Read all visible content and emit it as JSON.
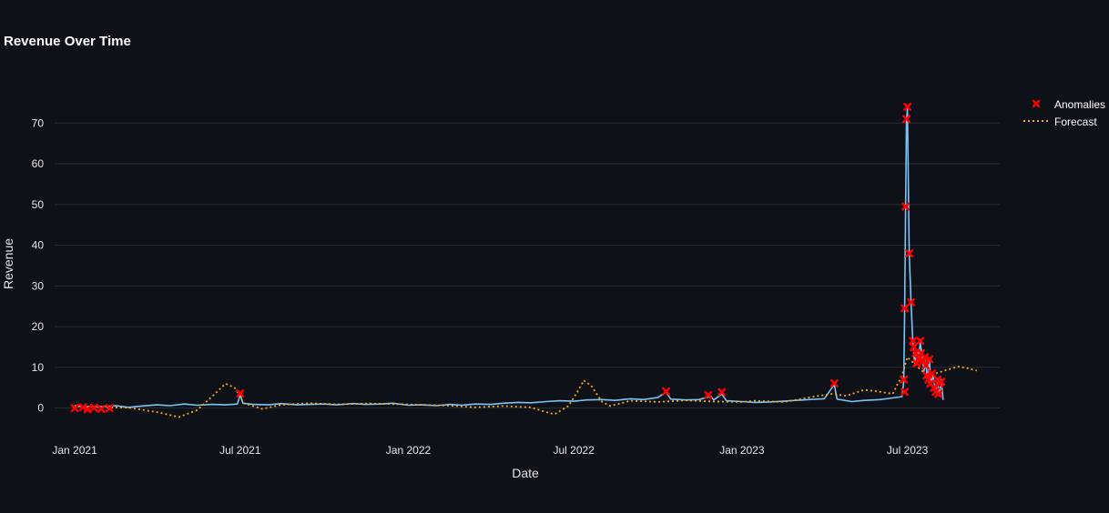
{
  "chart_data": {
    "type": "line",
    "title": "Revenue Over Time",
    "xlabel": "Date",
    "ylabel": "Revenue",
    "x_axis": {
      "type": "date",
      "range": [
        "2020-12-10",
        "2023-10-10"
      ],
      "ticks": [
        {
          "date": "2021-01-01",
          "label": "Jan 2021"
        },
        {
          "date": "2021-07-01",
          "label": "Jul 2021"
        },
        {
          "date": "2022-01-01",
          "label": "Jan 2022"
        },
        {
          "date": "2022-07-01",
          "label": "Jul 2022"
        },
        {
          "date": "2023-01-01",
          "label": "Jan 2023"
        },
        {
          "date": "2023-07-01",
          "label": "Jul 2023"
        }
      ]
    },
    "y_axis": {
      "range": [
        -7,
        79
      ],
      "ticks": [
        0,
        10,
        20,
        30,
        40,
        50,
        60,
        70
      ]
    },
    "grid": true,
    "legend_position": "top-right",
    "series": [
      {
        "kind": "line",
        "color": "#7cc4f8",
        "points": [
          [
            "2021-01-01",
            0.5
          ],
          [
            "2021-01-15",
            0.3
          ],
          [
            "2021-02-01",
            0.4
          ],
          [
            "2021-02-15",
            0.6
          ],
          [
            "2021-03-01",
            0.2
          ],
          [
            "2021-03-15",
            0.5
          ],
          [
            "2021-04-01",
            0.8
          ],
          [
            "2021-04-15",
            0.6
          ],
          [
            "2021-05-01",
            1.0
          ],
          [
            "2021-05-15",
            0.7
          ],
          [
            "2021-06-01",
            0.9
          ],
          [
            "2021-06-15",
            0.8
          ],
          [
            "2021-06-28",
            1.0
          ],
          [
            "2021-07-01",
            3.3
          ],
          [
            "2021-07-04",
            1.2
          ],
          [
            "2021-07-15",
            0.9
          ],
          [
            "2021-08-01",
            0.8
          ],
          [
            "2021-08-15",
            1.1
          ],
          [
            "2021-09-01",
            0.8
          ],
          [
            "2021-09-15",
            0.9
          ],
          [
            "2021-10-01",
            1.0
          ],
          [
            "2021-10-15",
            0.8
          ],
          [
            "2021-11-01",
            1.1
          ],
          [
            "2021-11-15",
            0.9
          ],
          [
            "2021-12-01",
            1.0
          ],
          [
            "2021-12-15",
            1.2
          ],
          [
            "2022-01-01",
            0.7
          ],
          [
            "2022-01-15",
            0.8
          ],
          [
            "2022-02-01",
            0.6
          ],
          [
            "2022-02-15",
            0.9
          ],
          [
            "2022-03-01",
            0.7
          ],
          [
            "2022-03-15",
            1.0
          ],
          [
            "2022-04-01",
            0.9
          ],
          [
            "2022-04-15",
            1.2
          ],
          [
            "2022-05-01",
            1.4
          ],
          [
            "2022-05-15",
            1.3
          ],
          [
            "2022-06-01",
            1.6
          ],
          [
            "2022-06-15",
            1.8
          ],
          [
            "2022-07-01",
            1.7
          ],
          [
            "2022-07-15",
            2.0
          ],
          [
            "2022-08-01",
            2.1
          ],
          [
            "2022-08-15",
            1.9
          ],
          [
            "2022-09-01",
            2.3
          ],
          [
            "2022-09-15",
            2.1
          ],
          [
            "2022-10-01",
            2.6
          ],
          [
            "2022-10-10",
            4.0
          ],
          [
            "2022-10-15",
            2.2
          ],
          [
            "2022-11-01",
            2.0
          ],
          [
            "2022-11-15",
            2.1
          ],
          [
            "2022-11-28",
            2.9
          ],
          [
            "2022-12-01",
            2.0
          ],
          [
            "2022-12-10",
            3.4
          ],
          [
            "2022-12-15",
            1.8
          ],
          [
            "2023-01-01",
            1.6
          ],
          [
            "2023-01-15",
            1.4
          ],
          [
            "2023-02-01",
            1.5
          ],
          [
            "2023-02-15",
            1.7
          ],
          [
            "2023-03-01",
            1.9
          ],
          [
            "2023-03-15",
            2.1
          ],
          [
            "2023-04-01",
            2.3
          ],
          [
            "2023-04-12",
            5.8
          ],
          [
            "2023-04-15",
            2.2
          ],
          [
            "2023-05-01",
            1.6
          ],
          [
            "2023-05-15",
            1.9
          ],
          [
            "2023-06-01",
            2.1
          ],
          [
            "2023-06-15",
            2.5
          ],
          [
            "2023-06-25",
            2.8
          ],
          [
            "2023-06-27",
            6.5
          ],
          [
            "2023-06-28",
            24.5
          ],
          [
            "2023-06-29",
            49.0
          ],
          [
            "2023-06-30",
            70.5
          ],
          [
            "2023-07-01",
            73.5
          ],
          [
            "2023-07-03",
            38.0
          ],
          [
            "2023-07-05",
            26.0
          ],
          [
            "2023-07-07",
            16.0
          ],
          [
            "2023-07-09",
            11.0
          ],
          [
            "2023-07-11",
            14.0
          ],
          [
            "2023-07-13",
            12.5
          ],
          [
            "2023-07-15",
            16.0
          ],
          [
            "2023-07-17",
            13.0
          ],
          [
            "2023-07-19",
            9.0
          ],
          [
            "2023-07-21",
            11.5
          ],
          [
            "2023-07-23",
            7.0
          ],
          [
            "2023-07-25",
            12.0
          ],
          [
            "2023-07-27",
            5.5
          ],
          [
            "2023-07-29",
            8.0
          ],
          [
            "2023-08-01",
            4.0
          ],
          [
            "2023-08-03",
            6.5
          ],
          [
            "2023-08-05",
            3.0
          ],
          [
            "2023-08-07",
            7.0
          ],
          [
            "2023-08-09",
            2.0
          ]
        ]
      },
      {
        "name": "Forecast",
        "kind": "dotted-line",
        "color": "#f5a623",
        "points": [
          [
            "2021-01-01",
            0.6
          ],
          [
            "2021-02-01",
            0.2
          ],
          [
            "2021-03-01",
            0.1
          ],
          [
            "2021-04-01",
            -1.0
          ],
          [
            "2021-04-25",
            -2.2
          ],
          [
            "2021-05-15",
            -0.5
          ],
          [
            "2021-06-01",
            3.0
          ],
          [
            "2021-06-15",
            6.0
          ],
          [
            "2021-06-25",
            5.0
          ],
          [
            "2021-07-05",
            1.2
          ],
          [
            "2021-07-25",
            -0.2
          ],
          [
            "2021-08-15",
            0.8
          ],
          [
            "2021-09-15",
            1.2
          ],
          [
            "2021-10-15",
            0.9
          ],
          [
            "2021-11-15",
            1.1
          ],
          [
            "2021-12-15",
            1.0
          ],
          [
            "2022-01-15",
            0.8
          ],
          [
            "2022-02-15",
            0.6
          ],
          [
            "2022-03-15",
            0.2
          ],
          [
            "2022-04-15",
            0.5
          ],
          [
            "2022-05-15",
            0.2
          ],
          [
            "2022-06-01",
            -1.0
          ],
          [
            "2022-06-10",
            -1.5
          ],
          [
            "2022-06-25",
            0.5
          ],
          [
            "2022-07-05",
            4.0
          ],
          [
            "2022-07-12",
            6.8
          ],
          [
            "2022-07-20",
            5.5
          ],
          [
            "2022-08-01",
            1.5
          ],
          [
            "2022-08-10",
            0.5
          ],
          [
            "2022-09-01",
            1.8
          ],
          [
            "2022-10-01",
            1.5
          ],
          [
            "2022-11-01",
            1.9
          ],
          [
            "2022-12-01",
            1.6
          ],
          [
            "2023-01-01",
            1.5
          ],
          [
            "2023-01-15",
            1.8
          ],
          [
            "2023-02-15",
            1.5
          ],
          [
            "2023-03-01",
            2.0
          ],
          [
            "2023-03-20",
            2.8
          ],
          [
            "2023-04-10",
            3.5
          ],
          [
            "2023-04-25",
            3.0
          ],
          [
            "2023-05-15",
            4.5
          ],
          [
            "2023-06-01",
            4.0
          ],
          [
            "2023-06-15",
            3.5
          ],
          [
            "2023-06-25",
            8.0
          ],
          [
            "2023-07-01",
            12.5
          ],
          [
            "2023-07-15",
            9.5
          ],
          [
            "2023-07-25",
            7.5
          ],
          [
            "2023-08-01",
            8.5
          ],
          [
            "2023-08-15",
            9.5
          ],
          [
            "2023-08-25",
            10.2
          ],
          [
            "2023-09-05",
            9.8
          ],
          [
            "2023-09-15",
            9.2
          ]
        ]
      },
      {
        "name": "Anomalies",
        "kind": "markers",
        "marker": "x",
        "color": "#ff0000",
        "points": [
          [
            "2021-01-01",
            0.0
          ],
          [
            "2021-01-10",
            0.2
          ],
          [
            "2021-01-15",
            -0.3
          ],
          [
            "2021-01-22",
            0.1
          ],
          [
            "2021-01-30",
            -0.2
          ],
          [
            "2021-02-08",
            0.0
          ],
          [
            "2021-07-01",
            3.6
          ],
          [
            "2022-10-10",
            4.1
          ],
          [
            "2022-11-25",
            3.2
          ],
          [
            "2022-12-10",
            3.9
          ],
          [
            "2023-04-12",
            6.1
          ],
          [
            "2023-06-27",
            7.0
          ],
          [
            "2023-06-28",
            4.0
          ],
          [
            "2023-06-28",
            24.5
          ],
          [
            "2023-06-29",
            49.5
          ],
          [
            "2023-06-30",
            71.0
          ],
          [
            "2023-07-01",
            74.0
          ],
          [
            "2023-07-03",
            38.0
          ],
          [
            "2023-07-05",
            26.0
          ],
          [
            "2023-07-07",
            16.5
          ],
          [
            "2023-07-08",
            15.0
          ],
          [
            "2023-07-10",
            13.5
          ],
          [
            "2023-07-11",
            11.0
          ],
          [
            "2023-07-13",
            12.0
          ],
          [
            "2023-07-15",
            16.5
          ],
          [
            "2023-07-16",
            13.5
          ],
          [
            "2023-07-18",
            11.5
          ],
          [
            "2023-07-20",
            12.5
          ],
          [
            "2023-07-21",
            10.5
          ],
          [
            "2023-07-22",
            8.0
          ],
          [
            "2023-07-24",
            7.0
          ],
          [
            "2023-07-25",
            12.0
          ],
          [
            "2023-07-26",
            6.0
          ],
          [
            "2023-07-28",
            8.5
          ],
          [
            "2023-07-30",
            5.0
          ],
          [
            "2023-08-01",
            4.0
          ],
          [
            "2023-08-03",
            7.0
          ],
          [
            "2023-08-04",
            3.5
          ],
          [
            "2023-08-05",
            6.0
          ],
          [
            "2023-08-07",
            6.5
          ]
        ]
      }
    ]
  }
}
